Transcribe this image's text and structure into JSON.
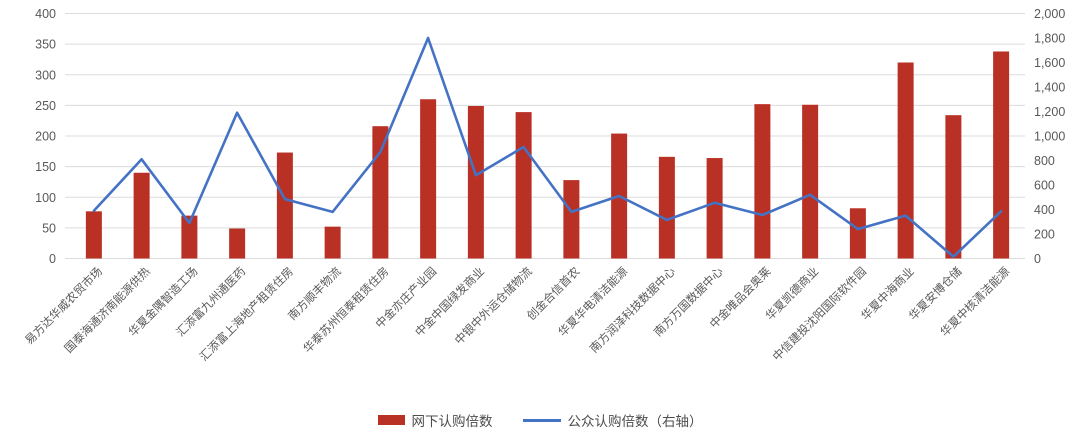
{
  "chart_data": {
    "type": "bar",
    "combo": "bar+line",
    "title": "",
    "categories": [
      "易方达华威农贸市场",
      "国泰海通济南能源供热",
      "华夏金隅智造工场",
      "汇添富九州通医药",
      "汇添富上海地产租赁住房",
      "南方顺丰物流",
      "华泰苏州恒泰租赁住房",
      "中金亦庄产业园",
      "中金中国绿发商业",
      "中银中外运仓储物流",
      "创金合信首农",
      "华夏华电清洁能源",
      "南方润泽科技数据中心",
      "南方万国数据中心",
      "中金唯品会奥莱",
      "华夏凯德商业",
      "中信建投沈阳国际软件园",
      "华夏中海商业",
      "华夏安博仓储",
      "华夏中核清洁能源"
    ],
    "series": [
      {
        "name": "网下认购倍数",
        "type": "bar",
        "axis": "left",
        "color": "#b93025",
        "values": [
          77,
          140,
          70,
          49,
          173,
          52,
          216,
          260,
          249,
          239,
          128,
          204,
          166,
          164,
          252,
          251,
          82,
          320,
          234,
          338
        ]
      },
      {
        "name": "公众认购倍数（右轴）",
        "type": "line",
        "axis": "right",
        "color": "#4472c4",
        "values": [
          390,
          810,
          290,
          1190,
          485,
          380,
          870,
          1800,
          680,
          910,
          380,
          510,
          315,
          455,
          355,
          520,
          240,
          350,
          15,
          385
        ]
      }
    ],
    "left_axis": {
      "min": 0,
      "max": 400,
      "step": 50,
      "ticks": [
        "0",
        "50",
        "100",
        "150",
        "200",
        "250",
        "300",
        "350",
        "400"
      ]
    },
    "right_axis": {
      "min": 0,
      "max": 2000,
      "step": 200,
      "ticks": [
        "0",
        "200",
        "400",
        "600",
        "800",
        "1,000",
        "1,200",
        "1,400",
        "1,600",
        "1,800",
        "2,000"
      ]
    },
    "grid": true,
    "legend_position": "bottom"
  },
  "colors": {
    "gridline": "#dcdcdc",
    "axis_text": "#595959",
    "category_text": "#595959",
    "background": "#ffffff"
  }
}
